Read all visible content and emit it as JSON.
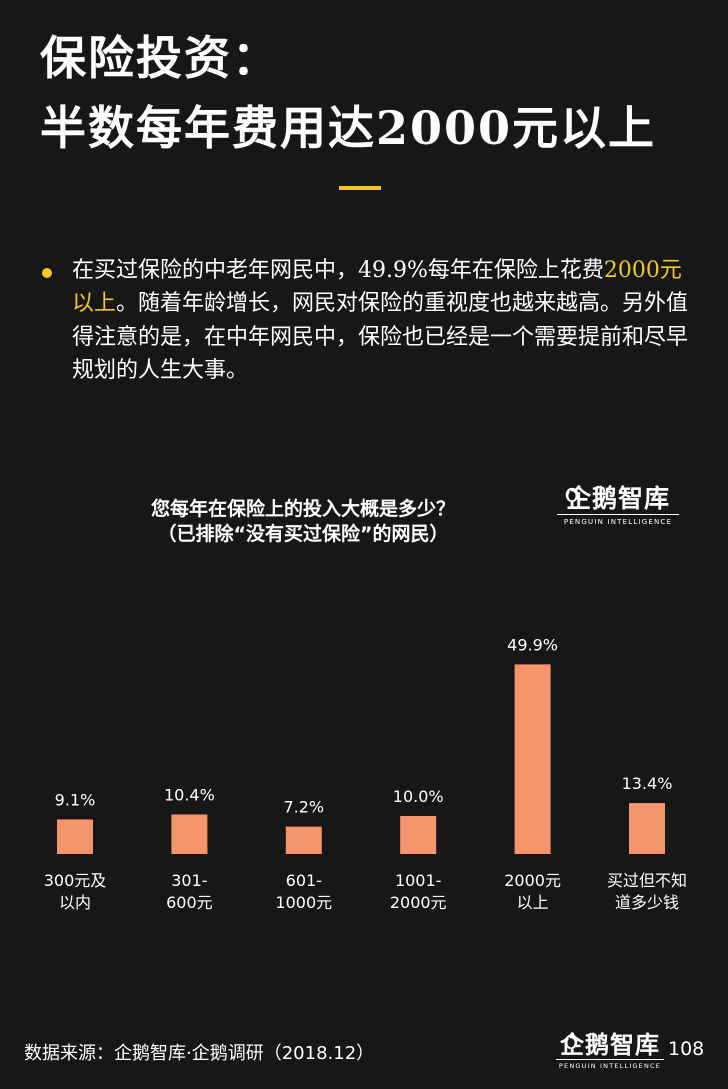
{
  "headline": {
    "line1": "保险投资：",
    "line2": "半数每年费用达2000元以上"
  },
  "bullet": {
    "text_before": "在买过保险的中老年网民中，49.9%每年在保险上花费",
    "highlight": "2000元以上",
    "text_after": "。随着年龄增长，网民对保险的重视度也越来越高。另外值得注意的是，在中年网民中，保险也已经是一个需要提前和尽早规划的人生大事。"
  },
  "chart_data": {
    "type": "bar",
    "title": "您每年在保险上的投入大概是多少？",
    "subtitle": "（已排除“没有买过保险”的网民）",
    "categories": [
      [
        "300元及",
        "以内"
      ],
      [
        "301-",
        "600元"
      ],
      [
        "601-",
        "1000元"
      ],
      [
        "1001-",
        "2000元"
      ],
      [
        "2000元",
        "以上"
      ],
      [
        "买过但不知",
        "道多少钱"
      ]
    ],
    "values": [
      9.1,
      10.4,
      7.2,
      10.0,
      49.9,
      13.4
    ],
    "value_labels": [
      "9.1%",
      "10.4%",
      "7.2%",
      "10.0%",
      "49.9%",
      "13.4%"
    ],
    "ylim": [
      0,
      50
    ],
    "grid": false,
    "bar_color": "#f4956d"
  },
  "logo": {
    "main": "企鹅智库",
    "sub": "PENGUIN INTELLIGENCE"
  },
  "footer": {
    "source": "数据来源：企鹅智库·企鹅调研（2018.12）",
    "page_number": "108"
  },
  "colors": {
    "background": "#171717",
    "accent": "#f0c92b",
    "bar": "#f4956d",
    "text": "#ffffff"
  }
}
